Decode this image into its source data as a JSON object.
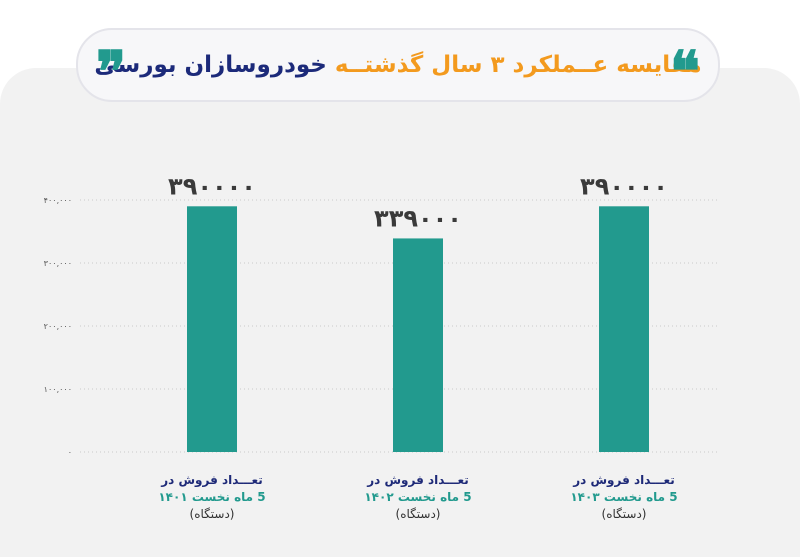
{
  "title": {
    "part_orange": "مقایسه عــملکرد ۳ سال گذشتــه",
    "part_navy": "خودروسازان بورسی"
  },
  "chart_data": {
    "type": "bar",
    "categories": [
      "تعداد فروش در 5 ماه نخست ۱۴۰۱ (دستگاه)",
      "تعداد فروش در 5 ماه نخست ۱۴۰۲ (دستگاه)",
      "تعداد فروش در 5 ماه نخست ۱۴۰۳ (دستگاه)"
    ],
    "values": [
      390000,
      339000,
      390000
    ],
    "value_labels": [
      "۳۹۰۰۰۰",
      "۳۳۹۰۰۰",
      "۳۹۰۰۰۰"
    ],
    "y_ticks": [
      0,
      100000,
      200000,
      300000,
      400000
    ],
    "y_tick_labels": [
      "۰",
      "۱۰۰,۰۰۰",
      "۲۰۰,۰۰۰",
      "۳۰۰,۰۰۰",
      "۴۰۰,۰۰۰"
    ],
    "ylim": [
      0,
      400000
    ],
    "grid": false,
    "bar_color": "#229a8e",
    "x_labels": [
      {
        "line1": "تعـــداد فروش در",
        "line2": "5 ماه نخست ۱۴۰۱",
        "line3": "(دستگاه)"
      },
      {
        "line1": "تعـــداد فروش در",
        "line2": "5 ماه نخست ۱۴۰۲",
        "line3": "(دستگاه)"
      },
      {
        "line1": "تعـــداد فروش در",
        "line2": "5 ماه نخست ۱۴۰۳",
        "line3": "(دستگاه)"
      }
    ]
  },
  "colors": {
    "accent_teal": "#229a8e",
    "title_orange": "#f39a1e",
    "title_navy": "#1c2a7a"
  }
}
